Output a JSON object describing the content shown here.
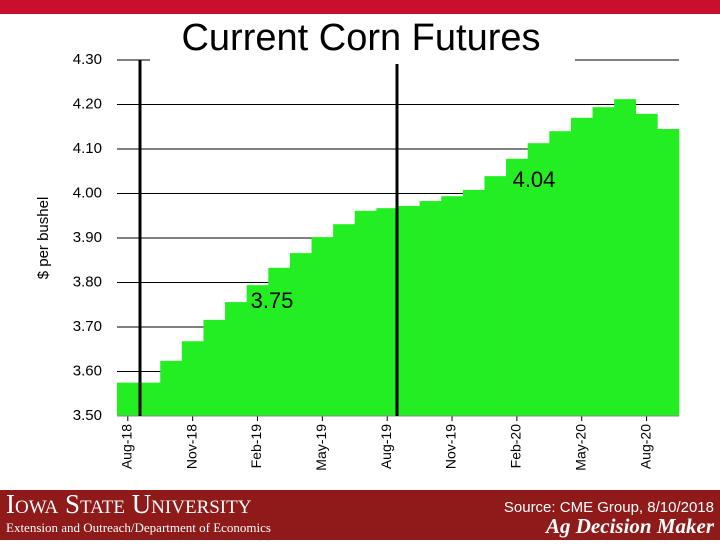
{
  "chart_data": {
    "type": "step-area",
    "title": "Current Corn Futures",
    "y_label": "$ per bushel",
    "categories": [
      "Aug-18",
      null,
      null,
      "Nov-18",
      null,
      null,
      "Feb-19",
      null,
      null,
      "May-19",
      null,
      null,
      "Aug-19",
      null,
      null,
      "Nov-19",
      null,
      null,
      "Feb-20",
      null,
      null,
      "May-20",
      null,
      null,
      "Aug-20",
      null
    ],
    "values": [
      3.575,
      3.575,
      3.624,
      3.668,
      3.716,
      3.756,
      3.794,
      3.833,
      3.866,
      3.902,
      3.931,
      3.961,
      3.967,
      3.972,
      3.983,
      3.994,
      4.008,
      4.039,
      4.078,
      4.113,
      4.14,
      4.17,
      4.194,
      4.212,
      4.179,
      4.145
    ],
    "color": "#22ee22",
    "ylim": [
      3.5,
      4.3
    ],
    "yticks": [
      {
        "value": 3.5,
        "label": "3.50"
      },
      {
        "value": 3.6,
        "label": "3.60"
      },
      {
        "value": 3.7,
        "label": "3.70"
      },
      {
        "value": 3.8,
        "label": "3.80"
      },
      {
        "value": 3.9,
        "label": "3.90"
      },
      {
        "value": 4.0,
        "label": "4.00"
      },
      {
        "value": 4.1,
        "label": "4.10"
      },
      {
        "value": 4.2,
        "label": "4.20"
      },
      {
        "value": 4.3,
        "label": "4.30"
      }
    ],
    "grid": true,
    "annotations": [
      "4.04",
      "3.75"
    ]
  },
  "footer": {
    "university": "Iowa State University",
    "department": "Extension and Outreach/Department of Economics",
    "source": "Source: CME Group, 8/10/2018",
    "brand": "Ag Decision Maker"
  }
}
